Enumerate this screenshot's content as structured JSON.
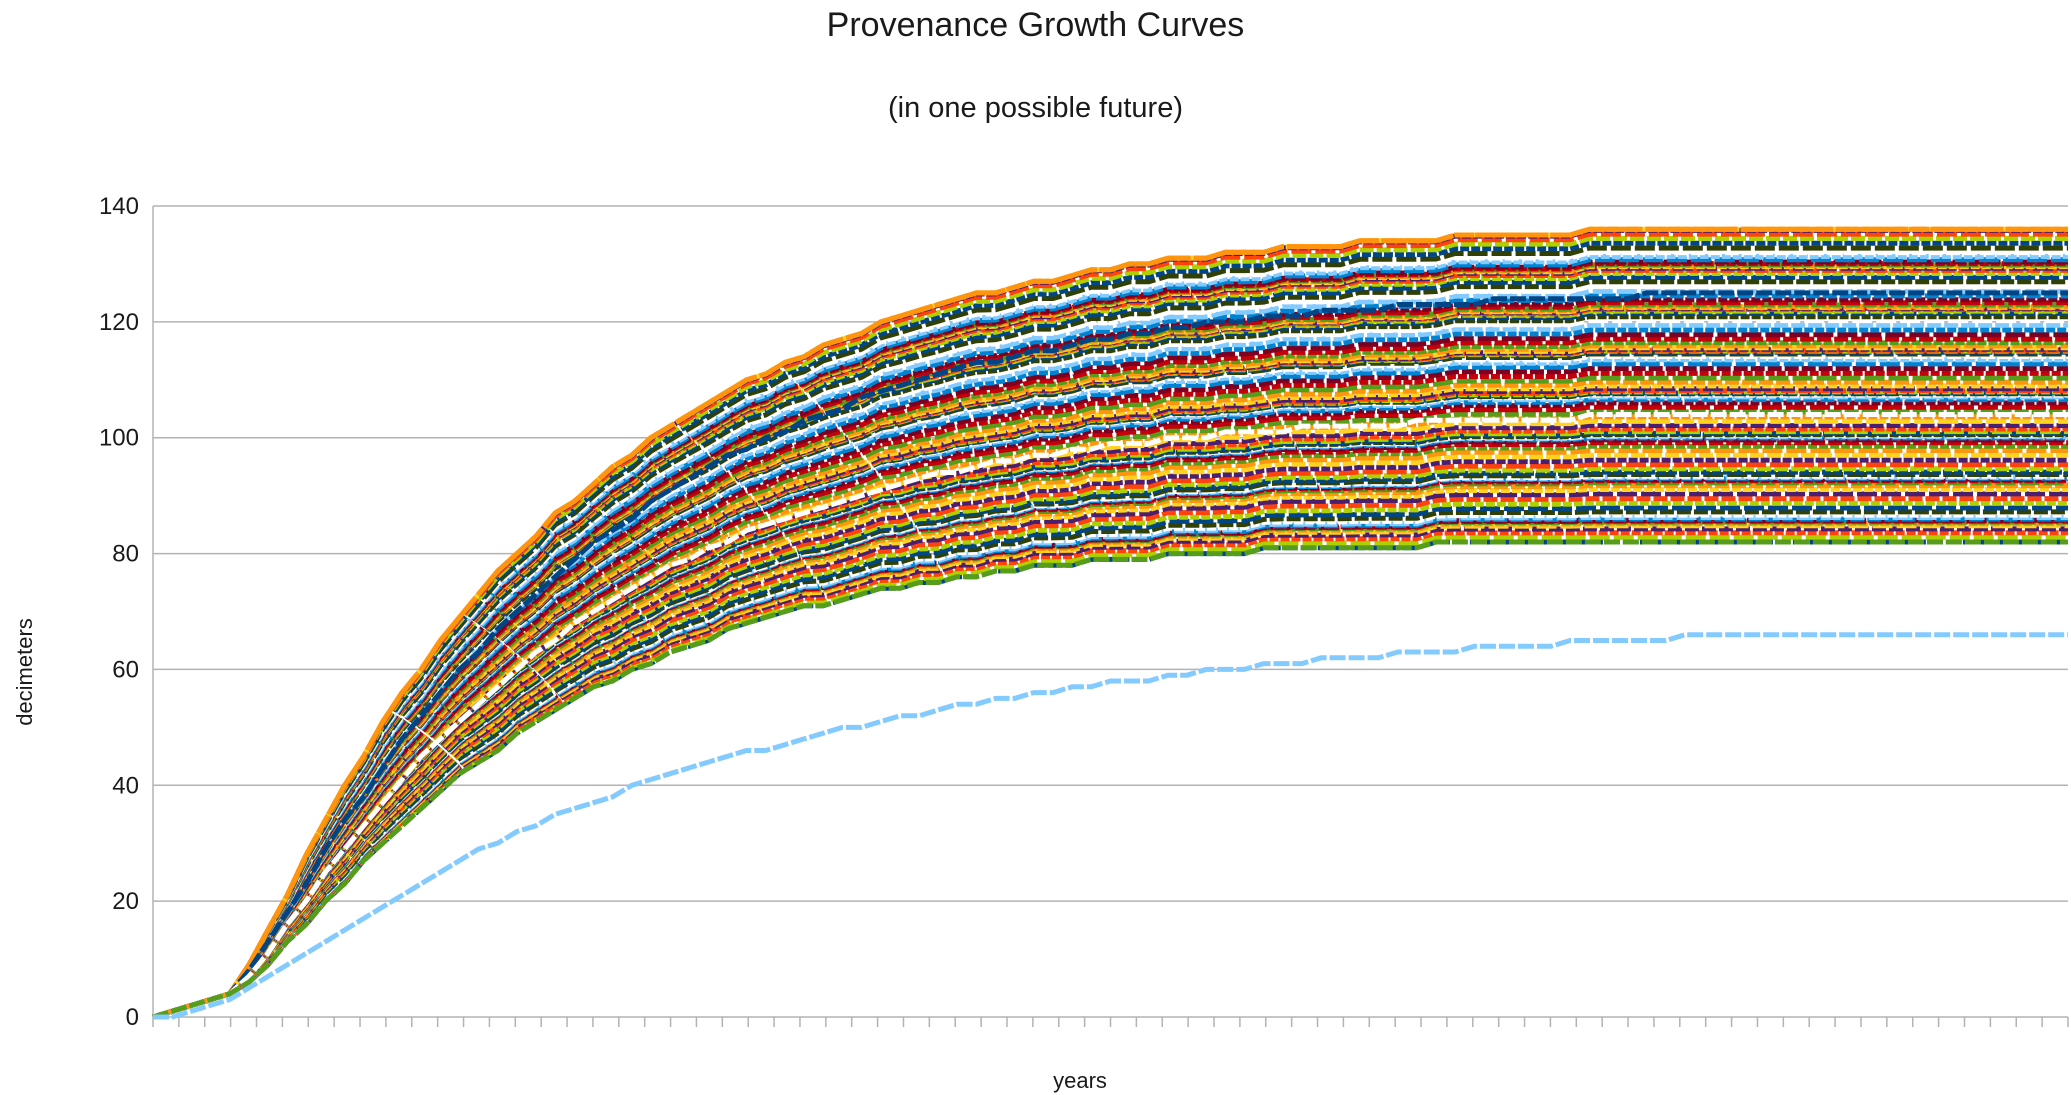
{
  "chart_data": {
    "type": "line",
    "title": "Provenance Growth Curves",
    "subtitle": "(in one possible future)",
    "xlabel": "years",
    "ylabel": "decimeters",
    "ylim": [
      0,
      140
    ],
    "yticks": [
      0,
      20,
      40,
      60,
      80,
      100,
      120,
      140
    ],
    "xlim": [
      0,
      100
    ],
    "x_tick_labels_shown": false,
    "grid": "horizontal",
    "legend": "none",
    "series_count_estimate": 120,
    "series": [
      {
        "values": [
          0,
          1,
          2,
          3,
          4,
          9,
          15,
          21,
          28,
          34,
          40,
          45,
          51,
          56,
          60,
          65,
          69,
          73,
          77,
          80,
          83,
          87,
          89,
          92,
          95,
          97,
          100,
          102,
          104,
          106,
          108,
          110,
          111,
          113,
          114,
          116,
          117,
          118,
          120,
          121,
          122,
          123,
          124,
          125,
          125,
          126,
          127,
          127,
          128,
          129,
          129,
          130,
          130,
          131,
          131,
          131,
          132,
          132,
          132,
          133,
          133,
          133,
          133,
          134,
          134,
          134,
          134,
          134,
          135,
          135,
          135,
          135,
          135,
          135,
          135,
          136,
          136,
          136,
          136,
          136,
          136,
          136,
          136,
          136,
          136,
          136,
          136,
          136,
          136,
          136,
          136,
          136,
          136,
          136,
          136,
          136,
          136,
          136,
          136,
          136,
          136
        ]
      },
      {
        "values": [
          0,
          1,
          2,
          3,
          4,
          8,
          13,
          18,
          23,
          29,
          34,
          38,
          43,
          48,
          52,
          56,
          60,
          63,
          67,
          70,
          73,
          76,
          79,
          82,
          84,
          86,
          89,
          91,
          93,
          95,
          97,
          98,
          100,
          101,
          103,
          104,
          105,
          107,
          108,
          109,
          110,
          111,
          112,
          113,
          113,
          114,
          115,
          115,
          116,
          117,
          117,
          118,
          118,
          119,
          119,
          120,
          120,
          120,
          121,
          121,
          121,
          122,
          122,
          122,
          122,
          123,
          123,
          123,
          123,
          123,
          124,
          124,
          124,
          124,
          124,
          124,
          124,
          124,
          125,
          125,
          125,
          125,
          125,
          125,
          125,
          125,
          125,
          125,
          125,
          125,
          125,
          125,
          125,
          125,
          125,
          125,
          125,
          125,
          125,
          125,
          125
        ]
      },
      {
        "values": [
          0,
          1,
          2,
          3,
          4,
          7,
          11,
          16,
          20,
          25,
          29,
          33,
          37,
          41,
          45,
          48,
          51,
          54,
          57,
          60,
          63,
          65,
          68,
          70,
          72,
          74,
          76,
          78,
          79,
          81,
          82,
          84,
          85,
          86,
          87,
          88,
          89,
          90,
          91,
          92,
          93,
          94,
          94,
          95,
          96,
          96,
          97,
          97,
          98,
          98,
          99,
          99,
          99,
          100,
          100,
          100,
          101,
          101,
          101,
          101,
          102,
          102,
          102,
          102,
          102,
          102,
          103,
          103,
          103,
          103,
          103,
          103,
          103,
          103,
          103,
          104,
          104,
          104,
          104,
          104,
          104,
          104,
          104,
          104,
          104,
          104,
          104,
          104,
          104,
          104,
          104,
          104,
          104,
          104,
          104,
          104,
          104,
          104,
          104,
          104,
          104
        ]
      },
      {
        "values": [
          0,
          1,
          2,
          3,
          4,
          6,
          9,
          13,
          16,
          20,
          23,
          27,
          30,
          33,
          36,
          39,
          42,
          44,
          46,
          49,
          51,
          53,
          55,
          57,
          58,
          60,
          61,
          63,
          64,
          65,
          67,
          68,
          69,
          70,
          71,
          71,
          72,
          73,
          74,
          74,
          75,
          75,
          76,
          76,
          77,
          77,
          78,
          78,
          78,
          79,
          79,
          79,
          79,
          80,
          80,
          80,
          80,
          80,
          81,
          81,
          81,
          81,
          81,
          81,
          81,
          81,
          81,
          82,
          82,
          82,
          82,
          82,
          82,
          82,
          82,
          82,
          82,
          82,
          82,
          82,
          82,
          82,
          82,
          82,
          82,
          82,
          82,
          82,
          82,
          82,
          82,
          82,
          82,
          82,
          82,
          82,
          82,
          82,
          82,
          82,
          82
        ]
      },
      {
        "values": [
          0,
          0,
          1,
          2,
          3,
          5,
          7,
          9,
          11,
          13,
          15,
          17,
          19,
          21,
          23,
          25,
          27,
          29,
          30,
          32,
          33,
          35,
          36,
          37,
          38,
          40,
          41,
          42,
          43,
          44,
          45,
          46,
          46,
          47,
          48,
          49,
          50,
          50,
          51,
          52,
          52,
          53,
          54,
          54,
          55,
          55,
          56,
          56,
          57,
          57,
          58,
          58,
          58,
          59,
          59,
          60,
          60,
          60,
          61,
          61,
          61,
          62,
          62,
          62,
          62,
          63,
          63,
          63,
          63,
          64,
          64,
          64,
          64,
          64,
          65,
          65,
          65,
          65,
          65,
          65,
          66,
          66,
          66,
          66,
          66,
          66,
          66,
          66,
          66,
          66,
          66,
          66,
          66,
          66,
          66,
          66,
          66,
          66,
          66,
          66,
          66
        ]
      }
    ]
  },
  "colors": {
    "background": "#ffffff",
    "grid": "#b3b3b3",
    "axis": "#b3b3b3",
    "text": "#1a1a1a",
    "palette": [
      "#004586",
      "#ff420e",
      "#ffd320",
      "#579d1c",
      "#7e0021",
      "#83caff",
      "#314004",
      "#aecf00",
      "#4b1f6f",
      "#ff950e",
      "#c5000b",
      "#0084d1",
      "#ffffff"
    ]
  }
}
